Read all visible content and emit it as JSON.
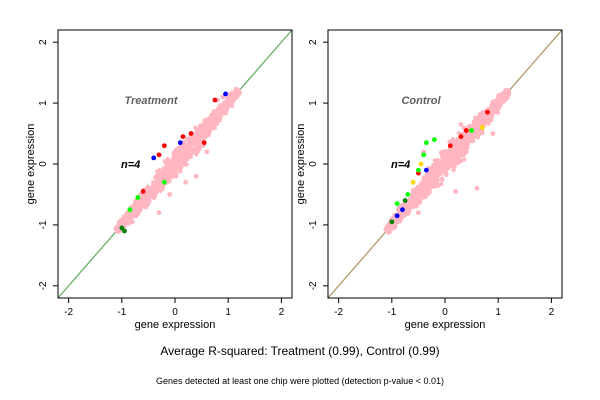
{
  "figure": {
    "caption": "Average R-squared: Treatment (0.99), Control (0.99)",
    "footnote": "Genes detected at least one chip were plotted (detection p-value < 0.01)"
  },
  "chart_data": [
    {
      "type": "scatter",
      "title": "Treatment",
      "annotation": "n=4",
      "xlabel": "gene expression",
      "ylabel": "gene expression",
      "xlim": [
        -2.2,
        2.2
      ],
      "ylim": [
        -2.2,
        2.2
      ],
      "xticks": [
        -2,
        -1,
        0,
        1,
        2
      ],
      "yticks": [
        -2,
        -1,
        0,
        1,
        2
      ],
      "grid": false,
      "diagonal_color": "#66b366",
      "cloud": {
        "x_range": [
          -1.1,
          1.2
        ],
        "half_width": 0.13,
        "color": "#ffb6c1"
      },
      "series": [
        {
          "color": "#ffb6c1",
          "points": [
            [
              0.8,
              1.05
            ],
            [
              0.9,
              1.1
            ],
            [
              -0.8,
              -0.95
            ],
            [
              0.2,
              -0.3
            ],
            [
              -0.1,
              -0.5
            ],
            [
              0.4,
              -0.2
            ],
            [
              0.6,
              0.2
            ],
            [
              -0.3,
              -0.8
            ]
          ]
        },
        {
          "color": "#ff0000",
          "points": [
            [
              0.75,
              1.05
            ],
            [
              0.15,
              0.45
            ],
            [
              0.3,
              0.5
            ],
            [
              -0.3,
              0.15
            ],
            [
              -0.6,
              -0.45
            ],
            [
              0.55,
              0.35
            ],
            [
              -0.2,
              0.3
            ]
          ]
        },
        {
          "color": "#0000ff",
          "points": [
            [
              0.95,
              1.15
            ],
            [
              -0.4,
              0.1
            ],
            [
              0.1,
              0.35
            ]
          ]
        },
        {
          "color": "#00ff00",
          "points": [
            [
              -0.7,
              -0.55
            ],
            [
              -0.2,
              -0.3
            ],
            [
              -0.85,
              -0.75
            ]
          ]
        },
        {
          "color": "#008000",
          "points": [
            [
              -0.95,
              -1.1
            ],
            [
              -1.0,
              -1.05
            ]
          ]
        }
      ]
    },
    {
      "type": "scatter",
      "title": "Control",
      "annotation": "n=4",
      "xlabel": "gene expression",
      "ylabel": "gene expression",
      "xlim": [
        -2.2,
        2.2
      ],
      "ylim": [
        -2.2,
        2.2
      ],
      "xticks": [
        -2,
        -1,
        0,
        1,
        2
      ],
      "yticks": [
        -2,
        -1,
        0,
        1,
        2
      ],
      "grid": false,
      "diagonal_color": "#b39966",
      "cloud": {
        "x_range": [
          -1.1,
          1.2
        ],
        "half_width": 0.14,
        "color": "#ffb6c1"
      },
      "series": [
        {
          "color": "#ffb6c1",
          "points": [
            [
              0.6,
              -0.4
            ],
            [
              0.2,
              -0.45
            ],
            [
              -0.5,
              -0.8
            ],
            [
              0.9,
              0.5
            ],
            [
              0.3,
              0.65
            ],
            [
              -0.4,
              0.2
            ]
          ]
        },
        {
          "color": "#ff0000",
          "points": [
            [
              0.8,
              0.85
            ],
            [
              0.4,
              0.55
            ],
            [
              0.1,
              0.3
            ],
            [
              -0.5,
              -0.15
            ],
            [
              0.3,
              0.45
            ]
          ]
        },
        {
          "color": "#0000ff",
          "points": [
            [
              -0.8,
              -0.75
            ],
            [
              -0.9,
              -0.85
            ],
            [
              -0.35,
              -0.1
            ]
          ]
        },
        {
          "color": "#00ff00",
          "points": [
            [
              -0.35,
              0.35
            ],
            [
              -0.4,
              0.15
            ],
            [
              -0.2,
              0.4
            ],
            [
              -0.5,
              -0.1
            ],
            [
              0.5,
              0.55
            ],
            [
              -0.9,
              -0.65
            ],
            [
              -0.7,
              -0.5
            ]
          ]
        },
        {
          "color": "#ffd700",
          "points": [
            [
              -0.45,
              0.0
            ],
            [
              -0.6,
              -0.3
            ],
            [
              0.7,
              0.6
            ]
          ]
        },
        {
          "color": "#008000",
          "points": [
            [
              -1.0,
              -0.95
            ],
            [
              -0.75,
              -0.6
            ]
          ]
        }
      ]
    }
  ]
}
